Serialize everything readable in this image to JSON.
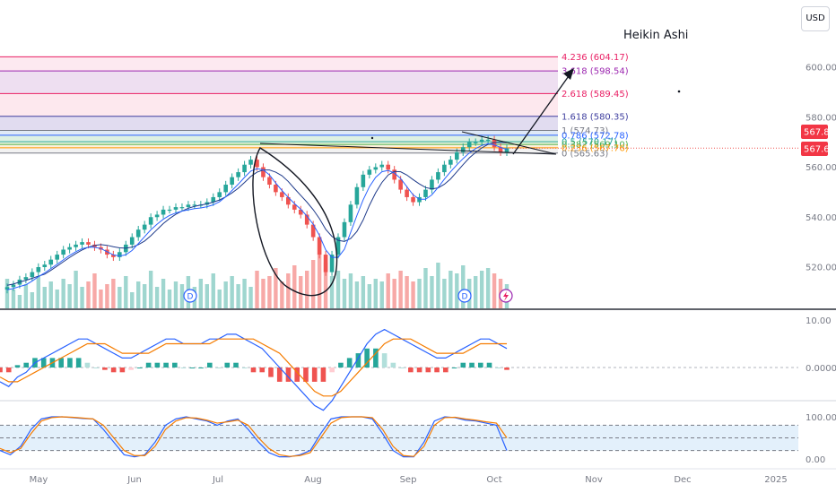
{
  "header": {
    "currency_button": "USD",
    "title": "Heikin Ashi"
  },
  "colors": {
    "up": "#26a69a",
    "down": "#ef5350",
    "volume_up": "#9fd6cf",
    "volume_down": "#f7a9a7",
    "ma_blue": "#2962ff",
    "ma_orange": "#f57c00",
    "stoch_band": "#e3f0fb"
  },
  "chart_data": [
    {
      "type": "candlestick",
      "title": "Heikin Ashi",
      "x_ticks": [
        "May",
        "Jun",
        "Jul",
        "Aug",
        "Sep",
        "Oct",
        "Nov",
        "Dec",
        "2025"
      ],
      "y_ticks": [
        "600.00",
        "580.00",
        "560.00",
        "540.00",
        "520.00"
      ],
      "ylim": [
        507,
        625
      ],
      "close": [
        512,
        513,
        515,
        516,
        518,
        520,
        521,
        523,
        525,
        527,
        528,
        529,
        530,
        529,
        528,
        527,
        525,
        524,
        526,
        529,
        532,
        535,
        537,
        540,
        541,
        543,
        543,
        544,
        544,
        545,
        545,
        545,
        546,
        548,
        550,
        553,
        556,
        558,
        561,
        563,
        560,
        556,
        553,
        550,
        548,
        545,
        543,
        541,
        537,
        532,
        525,
        518,
        525,
        532,
        538,
        545,
        552,
        557,
        559,
        560,
        561,
        559,
        555,
        551,
        548,
        546,
        548,
        551,
        555,
        558,
        561,
        563,
        566,
        568,
        570,
        570,
        571,
        571,
        568,
        566,
        567.62
      ],
      "price_tags": [
        "567.82",
        "567.62"
      ],
      "fibonacci": [
        {
          "level": "4.236",
          "price": "604.17",
          "text": "4.236 (604.17)",
          "color": "#e91e63"
        },
        {
          "level": "3.618",
          "price": "598.54",
          "text": "3.618 (598.54)",
          "color": "#9c27b0"
        },
        {
          "level": "2.618",
          "price": "589.45",
          "text": "2.618 (589.45)",
          "color": "#e91e63"
        },
        {
          "level": "1.618",
          "price": "580.35",
          "text": "1.618 (580.35)",
          "color": "#3f3f9f"
        },
        {
          "level": "1",
          "price": "574.73",
          "text": "1 (574.73)",
          "color": "#787b86"
        },
        {
          "level": "0.786",
          "price": "572.78",
          "text": "0.786 (572.78)",
          "color": "#2962ff"
        },
        {
          "level": "0.5",
          "price": "570.17",
          "text": "0.5 (570.17)",
          "color": "#26a69a"
        },
        {
          "level": "0.382",
          "price": "569.10",
          "text": "0.382 (569.10)",
          "color": "#4caf50"
        },
        {
          "level": "0.236",
          "price": "567.76",
          "text": "0.236 (567.76)",
          "color": "#ff9800"
        },
        {
          "level": "0",
          "price": "565.63",
          "text": "0 (565.63)",
          "color": "#787b86"
        }
      ],
      "volume": [
        0.55,
        0.35,
        0.25,
        0.45,
        0.3,
        0.6,
        0.4,
        0.5,
        0.35,
        0.55,
        0.45,
        0.7,
        0.4,
        0.5,
        0.65,
        0.35,
        0.45,
        0.55,
        0.4,
        0.6,
        0.3,
        0.5,
        0.45,
        0.7,
        0.4,
        0.55,
        0.35,
        0.5,
        0.45,
        0.6,
        0.4,
        0.55,
        0.45,
        0.65,
        0.35,
        0.5,
        0.6,
        0.45,
        0.55,
        0.4,
        0.7,
        0.55,
        0.6,
        0.75,
        0.5,
        0.65,
        0.8,
        0.6,
        0.7,
        0.9,
        1.0,
        0.85,
        0.6,
        0.7,
        0.55,
        0.65,
        0.5,
        0.6,
        0.45,
        0.55,
        0.5,
        0.65,
        0.55,
        0.7,
        0.6,
        0.5,
        0.55,
        0.75,
        0.6,
        0.85,
        0.55,
        0.7,
        0.65,
        0.8,
        0.55,
        0.6,
        0.7,
        0.75,
        0.65,
        0.55,
        0.45
      ]
    },
    {
      "type": "line",
      "y_ticks": [
        "10.00",
        "0.0000"
      ],
      "series": [
        {
          "values": [
            -3,
            -4,
            -2,
            -1,
            1,
            2,
            3,
            4,
            5,
            6,
            6,
            5,
            4,
            3,
            2,
            2,
            3,
            4,
            5,
            6,
            6,
            5,
            5,
            5,
            6,
            6,
            7,
            7,
            6,
            5,
            4,
            2,
            0,
            -2,
            -4,
            -6,
            -8,
            -9,
            -7,
            -4,
            -1,
            2,
            5,
            7,
            8,
            7,
            6,
            5,
            4,
            3,
            2,
            2,
            3,
            4,
            5,
            6,
            6,
            5,
            4
          ]
        },
        {
          "values": [
            -2,
            -3,
            -3,
            -2,
            -1,
            0,
            1,
            2,
            3,
            4,
            5,
            5,
            5,
            4,
            3,
            3,
            3,
            3,
            4,
            5,
            5,
            5,
            5,
            5,
            5,
            6,
            6,
            6,
            6,
            6,
            5,
            4,
            3,
            1,
            -1,
            -3,
            -5,
            -6,
            -6,
            -5,
            -3,
            -1,
            1,
            3,
            5,
            6,
            6,
            6,
            5,
            4,
            3,
            3,
            3,
            3,
            4,
            5,
            5,
            5,
            5
          ]
        }
      ],
      "histogram": [
        -1,
        -1,
        0.5,
        1,
        2,
        2,
        2,
        2,
        2,
        2,
        1,
        0,
        -0.5,
        -1,
        -1,
        -0.5,
        0,
        1,
        1,
        1,
        1,
        0,
        0,
        0,
        1,
        0,
        1,
        1,
        0,
        -1,
        -1,
        -2,
        -3,
        -3,
        -3,
        -3,
        -3,
        -3,
        -1,
        1,
        2,
        3,
        4,
        4,
        3,
        1,
        0,
        -1,
        -1,
        -1,
        -1,
        -1,
        0,
        1,
        1,
        1,
        1,
        0,
        -0.5
      ]
    },
    {
      "type": "line",
      "y_ticks": [
        "100.00",
        "0.00"
      ],
      "series": [
        {
          "values": [
            20,
            10,
            30,
            70,
            95,
            100,
            100,
            98,
            96,
            95,
            70,
            40,
            10,
            5,
            10,
            40,
            80,
            95,
            100,
            95,
            90,
            80,
            90,
            95,
            70,
            40,
            15,
            5,
            5,
            10,
            20,
            60,
            95,
            100,
            100,
            100,
            95,
            60,
            20,
            5,
            5,
            40,
            90,
            100,
            98,
            92,
            90,
            85,
            80,
            20
          ]
        },
        {
          "values": [
            25,
            15,
            25,
            60,
            90,
            98,
            100,
            99,
            97,
            95,
            80,
            50,
            20,
            8,
            8,
            30,
            70,
            90,
            98,
            97,
            92,
            85,
            88,
            92,
            80,
            50,
            25,
            10,
            6,
            8,
            15,
            50,
            85,
            98,
            100,
            100,
            98,
            70,
            30,
            8,
            6,
            30,
            80,
            98,
            99,
            95,
            92,
            88,
            85,
            50
          ]
        }
      ]
    }
  ]
}
